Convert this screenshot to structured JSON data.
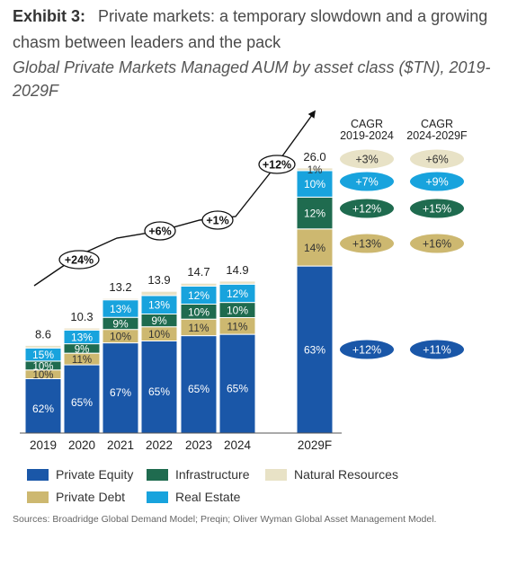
{
  "header": {
    "exhibit_label": "Exhibit 3:",
    "title": "Private markets: a temporary slowdown and a growing chasm between leaders and the pack",
    "subtitle": "Global Private Markets Managed AUM by asset class ($TN), 2019-2029F"
  },
  "source": "Sources: Broadridge Global Demand Model; Preqin; Oliver Wyman Global Asset Management Model.",
  "colors": {
    "private_equity": "#1a57a8",
    "infrastructure": "#1f6b4f",
    "natural_resources": "#e8e2c6",
    "private_debt": "#cdb870",
    "real_estate": "#18a3dd"
  },
  "chart_data": {
    "type": "bar",
    "stacked": true,
    "categories": [
      "2019",
      "2020",
      "2021",
      "2022",
      "2023",
      "2024",
      "2029F"
    ],
    "totals": [
      8.6,
      10.3,
      13.2,
      13.9,
      14.7,
      14.9,
      26.0
    ],
    "total_labels": [
      "8.6",
      "10.3",
      "13.2",
      "13.9",
      "14.7",
      "14.9",
      "26.0"
    ],
    "series": [
      {
        "name": "Private Equity",
        "color_key": "private_equity",
        "shares": [
          62,
          65,
          67,
          65,
          65,
          65,
          63
        ],
        "labels": [
          "62%",
          "65%",
          "67%",
          "65%",
          "65%",
          "65%",
          "63%"
        ]
      },
      {
        "name": "Private Debt",
        "color_key": "private_debt",
        "shares": [
          10,
          11,
          10,
          10,
          11,
          11,
          14
        ],
        "labels": [
          "10%",
          "11%",
          "10%",
          "10%",
          "11%",
          "11%",
          "14%"
        ]
      },
      {
        "name": "Infrastructure",
        "color_key": "infrastructure",
        "shares": [
          10,
          9,
          9,
          9,
          10,
          10,
          12
        ],
        "labels": [
          "10%",
          "9%",
          "9%",
          "9%",
          "10%",
          "10%",
          "12%"
        ]
      },
      {
        "name": "Real Estate",
        "color_key": "real_estate",
        "shares": [
          15,
          13,
          13,
          13,
          12,
          12,
          10
        ],
        "labels": [
          "15%",
          "13%",
          "13%",
          "13%",
          "12%",
          "12%",
          "10%"
        ]
      },
      {
        "name": "Natural Resources",
        "color_key": "natural_resources",
        "shares": [
          3,
          2,
          1,
          3,
          2,
          2,
          1
        ],
        "labels": [
          "",
          "",
          "",
          "",
          "",
          "",
          "1%"
        ]
      }
    ],
    "growth_callouts": [
      "+24%",
      "+6%",
      "+1%",
      "+12%"
    ],
    "cagr": {
      "headers": [
        [
          "CAGR",
          "2019-2024"
        ],
        [
          "CAGR",
          "2024-2029F"
        ]
      ],
      "rows": [
        {
          "series": "Natural Resources",
          "color_key": "natural_resources",
          "values": [
            "+3%",
            "+6%"
          ]
        },
        {
          "series": "Real Estate",
          "color_key": "real_estate",
          "values": [
            "+7%",
            "+9%"
          ]
        },
        {
          "series": "Infrastructure",
          "color_key": "infrastructure",
          "values": [
            "+12%",
            "+15%"
          ]
        },
        {
          "series": "Private Debt",
          "color_key": "private_debt",
          "values": [
            "+13%",
            "+16%"
          ]
        },
        {
          "series": "Private Equity",
          "color_key": "private_equity",
          "values": [
            "+12%",
            "+11%"
          ]
        }
      ]
    },
    "legend": {
      "position": "bottom",
      "items": [
        {
          "label": "Private Equity",
          "color_key": "private_equity"
        },
        {
          "label": "Infrastructure",
          "color_key": "infrastructure"
        },
        {
          "label": "Natural Resources",
          "color_key": "natural_resources"
        },
        {
          "label": "Private Debt",
          "color_key": "private_debt"
        },
        {
          "label": "Real Estate",
          "color_key": "real_estate"
        }
      ]
    }
  }
}
